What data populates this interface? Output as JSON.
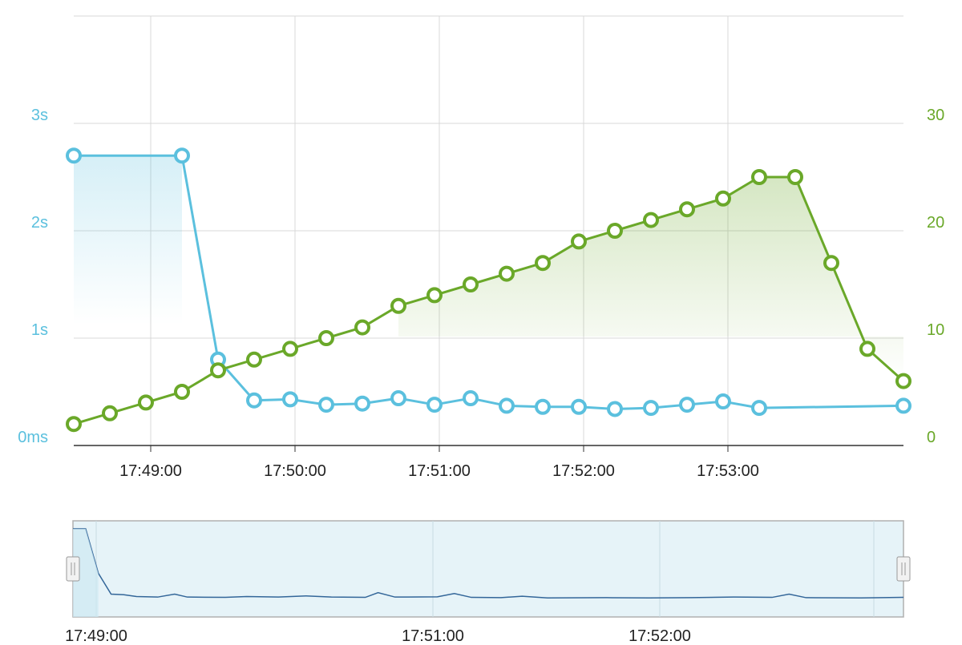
{
  "chart_data": {
    "type": "line",
    "title": "",
    "xlabel": "",
    "grid": true,
    "x_axis": {
      "ticks": [
        "17:49:00",
        "17:50:00",
        "17:51:00",
        "17:52:00",
        "17:53:00"
      ],
      "range": [
        "17:48:28",
        "17:53:53"
      ]
    },
    "y_left": {
      "tick_labels": [
        "0ms",
        "1s",
        "2s",
        "3s"
      ],
      "range_seconds": [
        0,
        4
      ]
    },
    "y_right": {
      "tick_labels": [
        "0",
        "10",
        "20",
        "30"
      ],
      "range": [
        0,
        40
      ]
    },
    "series": [
      {
        "axis": "left",
        "color": "#5bc0de",
        "points": [
          [
            "17:48:28",
            2.7
          ],
          [
            "17:49:13",
            2.7
          ],
          [
            "17:49:07",
            0.8
          ],
          [
            "17:49:43",
            0.42
          ],
          [
            "17:49:58",
            0.43
          ],
          [
            "17:50:13",
            0.38
          ],
          [
            "17:50:28",
            0.39
          ],
          [
            "17:50:43",
            0.44
          ],
          [
            "17:50:58",
            0.38
          ],
          [
            "17:51:13",
            0.44
          ],
          [
            "17:51:28",
            0.37
          ],
          [
            "17:51:43",
            0.36
          ],
          [
            "17:51:58",
            0.36
          ],
          [
            "17:52:13",
            0.34
          ],
          [
            "17:52:28",
            0.35
          ],
          [
            "17:52:43",
            0.38
          ],
          [
            "17:52:58",
            0.41
          ],
          [
            "17:53:13",
            0.35
          ],
          [
            "17:53:53",
            0.37
          ]
        ]
      },
      {
        "axis": "right",
        "color": "#6aa829",
        "points": [
          [
            "17:48:28",
            2
          ],
          [
            "17:48:43",
            3
          ],
          [
            "17:48:58",
            4
          ],
          [
            "17:49:13",
            5
          ],
          [
            "17:49:28",
            7
          ],
          [
            "17:49:43",
            8
          ],
          [
            "17:49:58",
            9
          ],
          [
            "17:50:13",
            10
          ],
          [
            "17:50:28",
            11
          ],
          [
            "17:50:43",
            13
          ],
          [
            "17:50:58",
            14
          ],
          [
            "17:51:13",
            15
          ],
          [
            "17:51:28",
            16
          ],
          [
            "17:51:43",
            17
          ],
          [
            "17:51:58",
            19
          ],
          [
            "17:52:13",
            20
          ],
          [
            "17:52:28",
            21
          ],
          [
            "17:52:43",
            22
          ],
          [
            "17:52:58",
            23
          ],
          [
            "17:53:13",
            25
          ],
          [
            "17:53:28",
            25
          ],
          [
            "17:53:43",
            17
          ],
          [
            "17:53:58",
            9
          ],
          [
            "17:54:13",
            6
          ]
        ]
      }
    ],
    "navigator": {
      "ticks": [
        "17:49:00",
        "17:51:00",
        "17:52:00"
      ],
      "color": "#336699",
      "fill": "#e6f3f8",
      "points": [
        [
          "17:48:28",
          2.7
        ],
        [
          "17:48:34",
          2.7
        ],
        [
          "17:48:40",
          1.2
        ],
        [
          "17:48:46",
          0.5
        ],
        [
          "17:48:52",
          0.48
        ],
        [
          "17:48:58",
          0.42
        ],
        [
          "17:49:08",
          0.4
        ],
        [
          "17:49:16",
          0.5
        ],
        [
          "17:49:22",
          0.4
        ],
        [
          "17:49:40",
          0.39
        ],
        [
          "17:49:50",
          0.42
        ],
        [
          "17:50:05",
          0.4
        ],
        [
          "17:50:18",
          0.44
        ],
        [
          "17:50:30",
          0.4
        ],
        [
          "17:50:46",
          0.39
        ],
        [
          "17:50:52",
          0.55
        ],
        [
          "17:51:00",
          0.4
        ],
        [
          "17:51:20",
          0.41
        ],
        [
          "17:51:28",
          0.52
        ],
        [
          "17:51:36",
          0.39
        ],
        [
          "17:51:50",
          0.38
        ],
        [
          "17:52:00",
          0.43
        ],
        [
          "17:52:12",
          0.37
        ],
        [
          "17:52:40",
          0.38
        ],
        [
          "17:53:00",
          0.37
        ],
        [
          "17:53:20",
          0.38
        ],
        [
          "17:53:40",
          0.4
        ],
        [
          "17:53:58",
          0.39
        ],
        [
          "17:54:06",
          0.5
        ],
        [
          "17:54:14",
          0.38
        ],
        [
          "17:54:40",
          0.37
        ],
        [
          "17:55:00",
          0.39
        ]
      ]
    }
  }
}
